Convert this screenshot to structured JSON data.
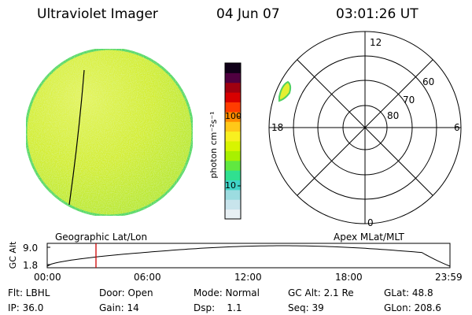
{
  "header": {
    "instrument": "Ultraviolet Imager",
    "date": "04 Jun 07",
    "time": "03:01:26 UT"
  },
  "colorbar": {
    "unit_label": "photon cm⁻²s⁻¹",
    "tick_100": "100",
    "tick_10": "10",
    "colors": [
      "#e8f0f4",
      "#c8e4ec",
      "#9cdce0",
      "#40d4c8",
      "#30e090",
      "#60e840",
      "#a8f000",
      "#d8f400",
      "#f8f020",
      "#ffc818",
      "#ff8c00",
      "#ff3c00",
      "#d80000",
      "#a00010",
      "#500040",
      "#100018"
    ]
  },
  "polar_plot": {
    "labels": [
      "12",
      "18",
      "6",
      "0",
      "60",
      "70",
      "80"
    ]
  },
  "timeline": {
    "ylabel": "GC Alt",
    "tick_top": "9.0",
    "tick_bottom": "1.8",
    "left_title": "Geographic Lat/Lon",
    "right_title": "Apex MLat/MLT",
    "x_ticks": [
      "00:00",
      "06:00",
      "12:00",
      "18:00",
      "23:59"
    ]
  },
  "footer": {
    "rows": [
      [
        "Flt: LBHL",
        "Door: Open",
        "Mode: Normal",
        "GC Alt: 2.1 Re",
        "GLat:  48.8"
      ],
      [
        "IP: 36.0",
        "Gain: 14",
        "Dsp:    1.1",
        "Seq: 39",
        "GLon: 208.6"
      ]
    ]
  },
  "colors": {
    "disk_fill": "#dcf028",
    "disk_edge": "#50dc60",
    "marker": "#d00000"
  }
}
